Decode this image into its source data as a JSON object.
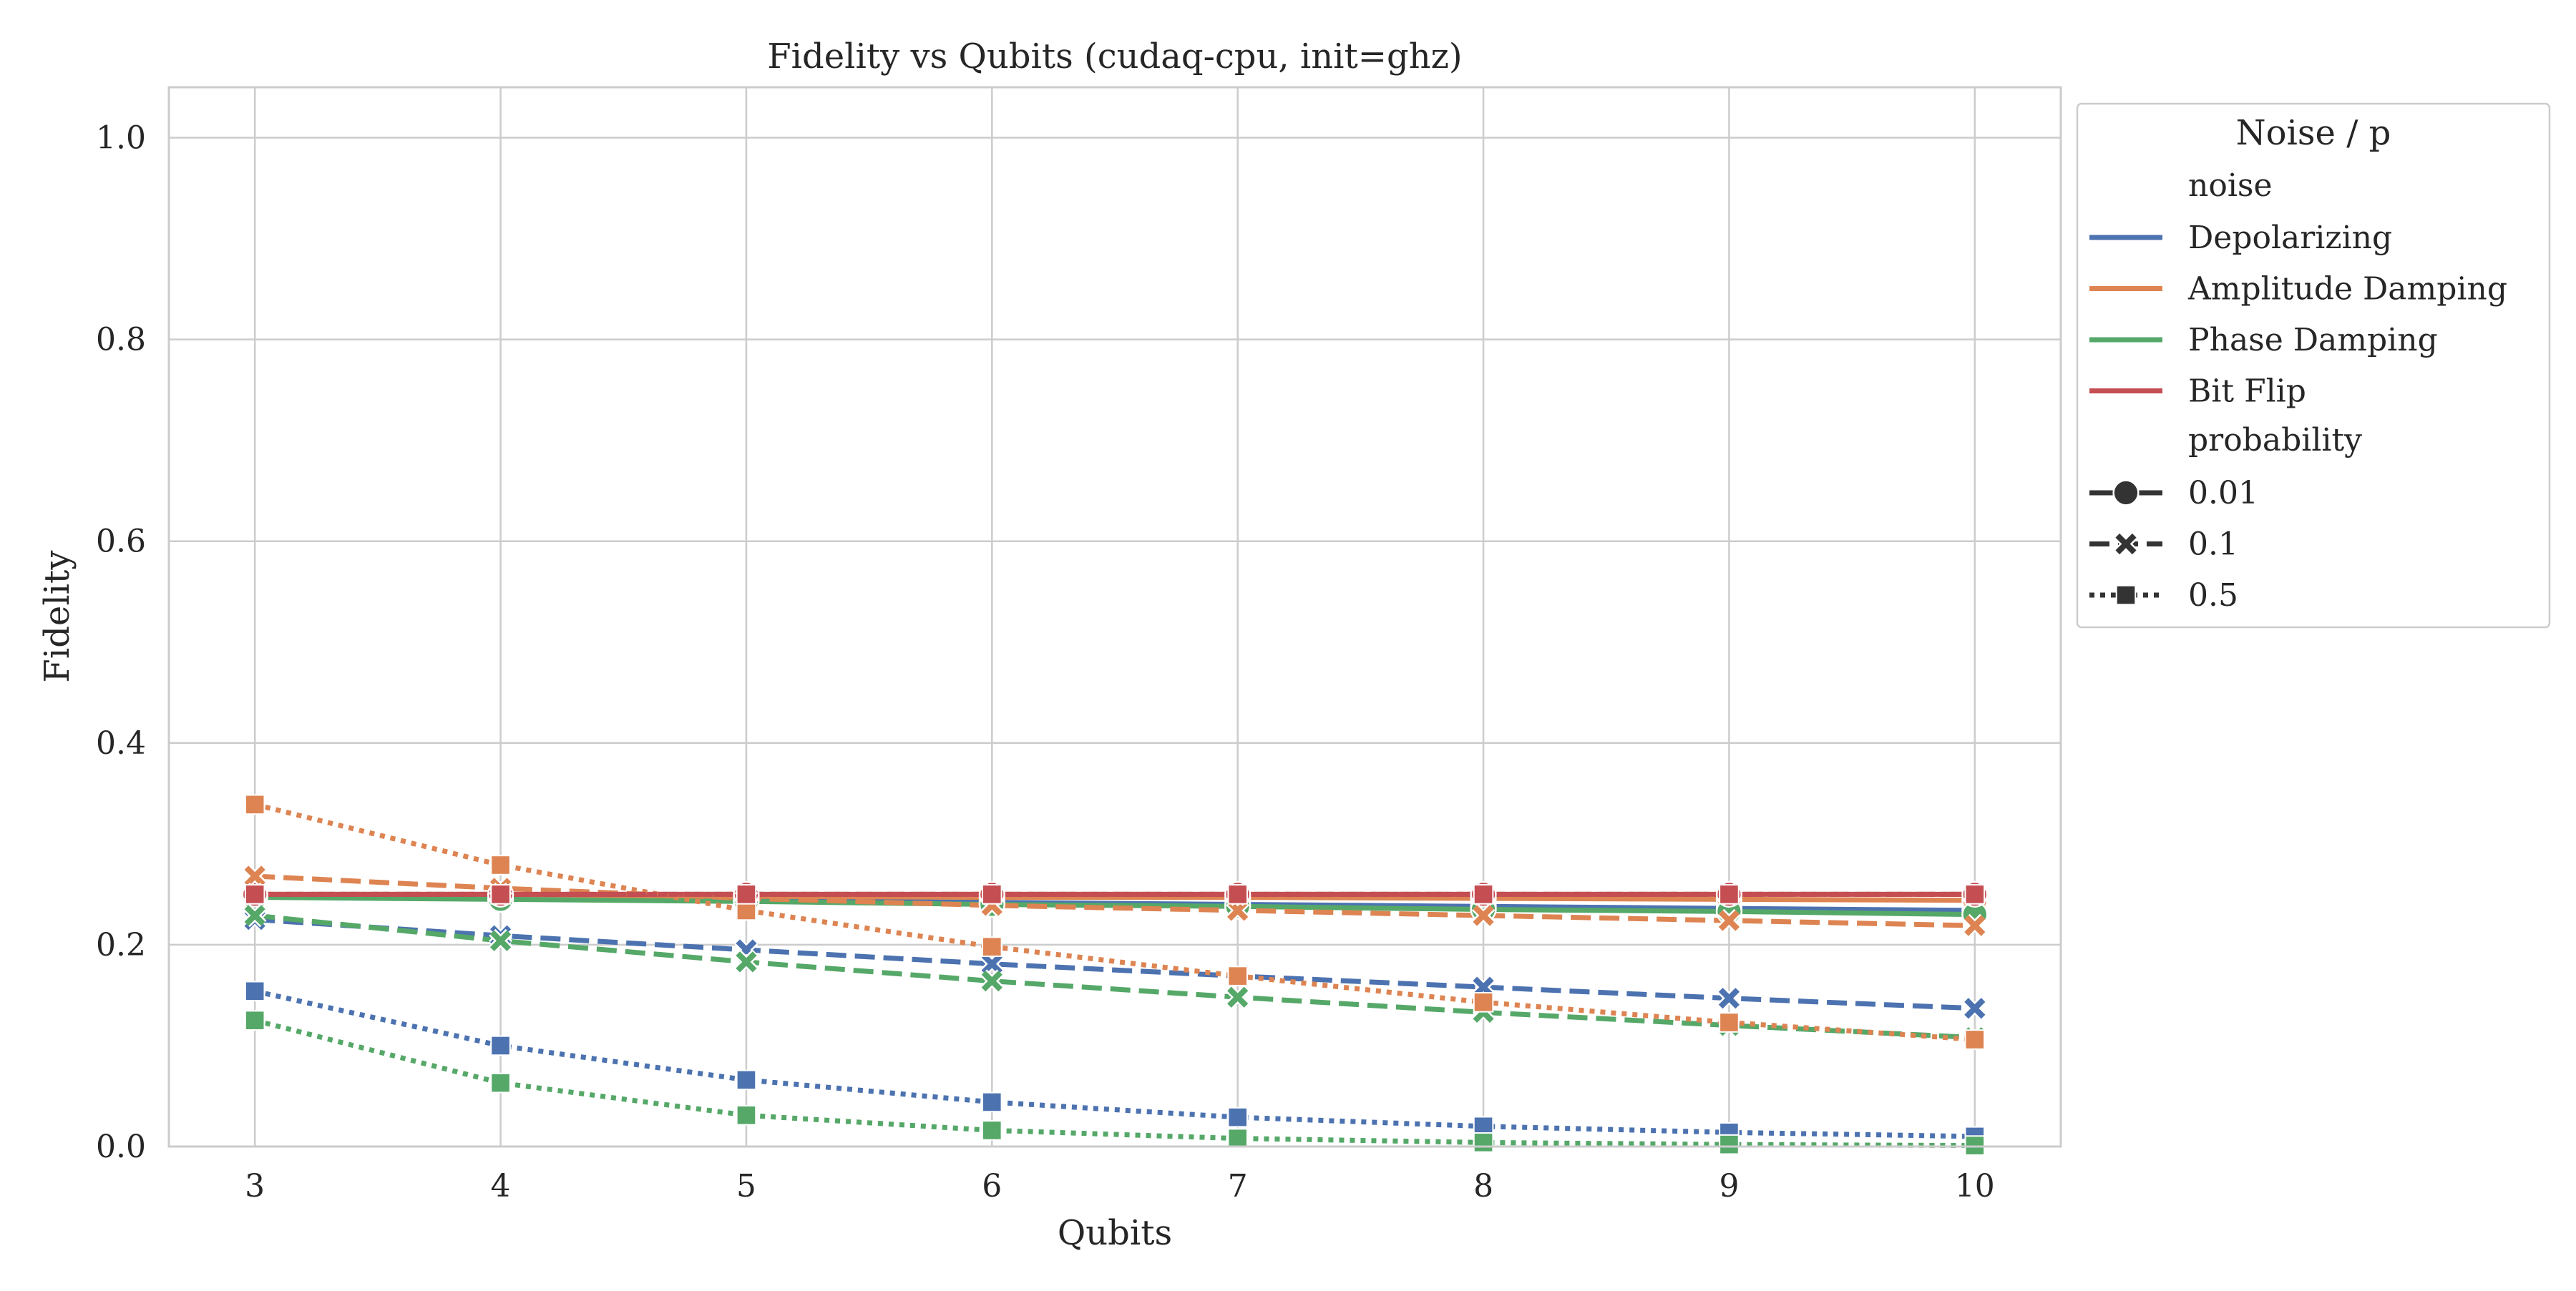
{
  "chart_data": {
    "type": "line",
    "title": "Fidelity vs Qubits (cudaq-cpu, init=ghz)",
    "xlabel": "Qubits",
    "ylabel": "Fidelity",
    "x": [
      3,
      4,
      5,
      6,
      7,
      8,
      9,
      10
    ],
    "xlim": [
      2.65,
      10.35
    ],
    "ylim": [
      0.0,
      1.05
    ],
    "xticks": [
      "3",
      "4",
      "5",
      "6",
      "7",
      "8",
      "9",
      "10"
    ],
    "yticks": [
      "0.0",
      "0.2",
      "0.4",
      "0.6",
      "0.8",
      "1.0"
    ],
    "grid": true,
    "legend": {
      "placement": "outside-right",
      "title": "Noise / p",
      "noise_header": "noise",
      "probability_header": "probability",
      "noise_entries": [
        {
          "name": "Depolarizing",
          "color": "#4c72b0"
        },
        {
          "name": "Amplitude Damping",
          "color": "#dd8452"
        },
        {
          "name": "Phase Damping",
          "color": "#55a868"
        },
        {
          "name": "Bit Flip",
          "color": "#c44e52"
        }
      ],
      "probability_entries": [
        {
          "name": "0.01",
          "marker": "circle",
          "dash": "solid"
        },
        {
          "name": "0.1",
          "marker": "x",
          "dash": "dashed"
        },
        {
          "name": "0.5",
          "marker": "square",
          "dash": "dotted"
        }
      ]
    },
    "series": [
      {
        "noise": "Depolarizing",
        "probability": "0.01",
        "values": [
          0.248,
          0.246,
          0.244,
          0.242,
          0.24,
          0.238,
          0.236,
          0.234
        ]
      },
      {
        "noise": "Amplitude Damping",
        "probability": "0.01",
        "values": [
          0.25,
          0.249,
          0.248,
          0.247,
          0.247,
          0.246,
          0.245,
          0.244
        ]
      },
      {
        "noise": "Phase Damping",
        "probability": "0.01",
        "values": [
          0.247,
          0.245,
          0.243,
          0.24,
          0.238,
          0.235,
          0.233,
          0.23
        ]
      },
      {
        "noise": "Bit Flip",
        "probability": "0.01",
        "values": [
          0.25,
          0.25,
          0.25,
          0.25,
          0.25,
          0.25,
          0.25,
          0.25
        ]
      },
      {
        "noise": "Depolarizing",
        "probability": "0.1",
        "values": [
          0.225,
          0.209,
          0.195,
          0.181,
          0.169,
          0.158,
          0.147,
          0.137
        ]
      },
      {
        "noise": "Amplitude Damping",
        "probability": "0.1",
        "values": [
          0.268,
          0.256,
          0.246,
          0.239,
          0.234,
          0.229,
          0.224,
          0.219
        ]
      },
      {
        "noise": "Phase Damping",
        "probability": "0.1",
        "values": [
          0.229,
          0.204,
          0.183,
          0.164,
          0.148,
          0.133,
          0.12,
          0.108
        ]
      },
      {
        "noise": "Bit Flip",
        "probability": "0.1",
        "values": [
          0.25,
          0.25,
          0.25,
          0.25,
          0.25,
          0.25,
          0.25,
          0.25
        ]
      },
      {
        "noise": "Depolarizing",
        "probability": "0.5",
        "values": [
          0.154,
          0.1,
          0.066,
          0.044,
          0.029,
          0.02,
          0.014,
          0.01
        ]
      },
      {
        "noise": "Amplitude Damping",
        "probability": "0.5",
        "values": [
          0.339,
          0.279,
          0.234,
          0.198,
          0.169,
          0.143,
          0.123,
          0.106
        ]
      },
      {
        "noise": "Phase Damping",
        "probability": "0.5",
        "values": [
          0.125,
          0.063,
          0.031,
          0.016,
          0.008,
          0.004,
          0.002,
          0.001
        ]
      },
      {
        "noise": "Bit Flip",
        "probability": "0.5",
        "values": [
          0.25,
          0.25,
          0.25,
          0.25,
          0.25,
          0.25,
          0.25,
          0.25
        ]
      }
    ]
  }
}
